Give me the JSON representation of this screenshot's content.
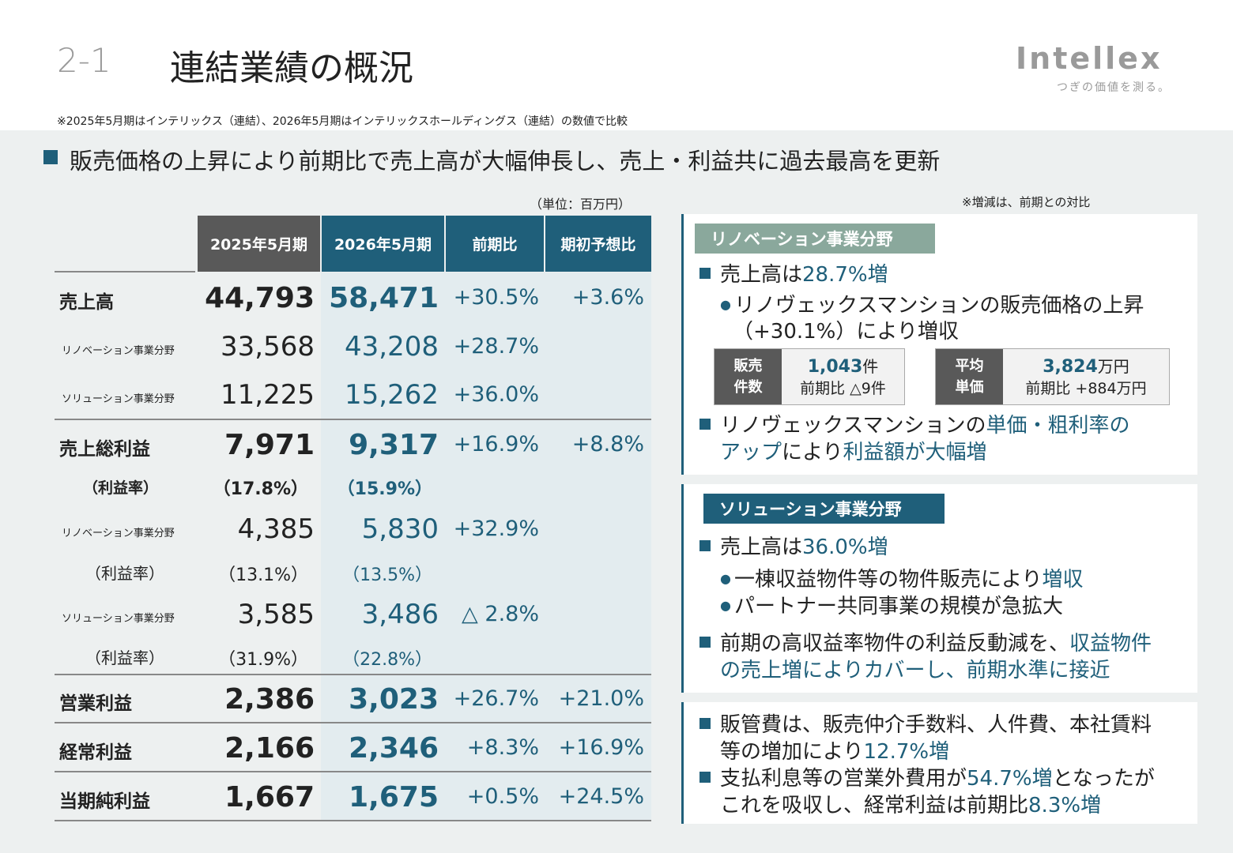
{
  "header": {
    "section_number": "2-1",
    "title": "連結業績の概況",
    "logo_text": "Intellex",
    "logo_tagline": "つぎの価値を測る。",
    "note": "※2025年5月期はインテリックス（連結）、2026年5月期はインテリックスホールディングス（連結）の数値で比較"
  },
  "headline": "販売価格の上昇により前期比で売上高が大幅伸長し、売上・利益共に過去最高を更新",
  "unit": "（単位：百万円）",
  "change_note": "※増減は、前期との対比",
  "table": {
    "columns": [
      "2025年5月期",
      "2026年5月期",
      "前期比",
      "期初予想比"
    ],
    "rows": [
      {
        "label": "売上高",
        "prev": "44,793",
        "cur": "58,471",
        "yoy": "+30.5%",
        "plan": "+3.6%"
      },
      {
        "label": "リノベーション事業分野",
        "prev": "33,568",
        "cur": "43,208",
        "yoy": "+28.7%",
        "plan": ""
      },
      {
        "label": "ソリューション事業分野",
        "prev": "11,225",
        "cur": "15,262",
        "yoy": "+36.0%",
        "plan": ""
      },
      {
        "label": "売上総利益",
        "prev": "7,971",
        "cur": "9,317",
        "yoy": "+16.9%",
        "plan": "+8.8%"
      },
      {
        "label": "（利益率）",
        "prev": "（17.8%）",
        "cur": "（15.9%）",
        "yoy": "",
        "plan": ""
      },
      {
        "label": "リノベーション事業分野",
        "prev": "4,385",
        "cur": "5,830",
        "yoy": "+32.9%",
        "plan": ""
      },
      {
        "label": "（利益率）",
        "prev": "（13.1%）",
        "cur": "（13.5%）",
        "yoy": "",
        "plan": ""
      },
      {
        "label": "ソリューション事業分野",
        "prev": "3,585",
        "cur": "3,486",
        "yoy": "△ 2.8%",
        "plan": ""
      },
      {
        "label": "（利益率）",
        "prev": "（31.9%）",
        "cur": "（22.8%）",
        "yoy": "",
        "plan": ""
      },
      {
        "label": "営業利益",
        "prev": "2,386",
        "cur": "3,023",
        "yoy": "+26.7%",
        "plan": "+21.0%"
      },
      {
        "label": "経常利益",
        "prev": "2,166",
        "cur": "2,346",
        "yoy": "+8.3%",
        "plan": "+16.9%"
      },
      {
        "label": "当期純利益",
        "prev": "1,667",
        "cur": "1,675",
        "yoy": "+0.5%",
        "plan": "+24.5%"
      }
    ]
  },
  "renovation": {
    "tag": "リノベーション事業分野",
    "b1_pre": "売上高は",
    "b1_hl": "28.7%増",
    "sub1_line1": "リノヴェックスマンションの販売価格の上昇",
    "sub1_line2": "（+30.1%）により増収",
    "stat1_key1": "販売",
    "stat1_key2": "件数",
    "stat1_num": "1,043",
    "stat1_unit": "件",
    "stat1_sub": "前期比 △9件",
    "stat2_key1": "平均",
    "stat2_key2": "単価",
    "stat2_num": "3,824",
    "stat2_unit": "万円",
    "stat2_sub": "前期比 +884万円",
    "b2_pre": "リノヴェックスマンションの",
    "b2_hl1": "単価・粗利率の",
    "b2_hl2": "アップ",
    "b2_mid": "により",
    "b2_hl3": "利益額が大幅増"
  },
  "solution": {
    "tag": "ソリューション事業分野",
    "b1_pre": "売上高は",
    "b1_hl": "36.0%増",
    "sub1_pre": "一棟収益物件等の物件販売により",
    "sub1_hl": "増収",
    "sub2": "パートナー共同事業の規模が急拡大",
    "b2_pre": "前期の高収益率物件の利益反動減を、",
    "b2_hl1": "収益物件",
    "b2_hl2": "の売上増によりカバーし、前期水準に接近"
  },
  "other": {
    "b1_line1": "販管費は、販売仲介手数料、人件費、本社賃料",
    "b1_pre": "等の増加により",
    "b1_hl": "12.7%増",
    "b2_pre": "支払利息等の営業外費用が",
    "b2_hl": "54.7%増",
    "b2_post": "となったが",
    "b2_line2_pre": "これを吸収し、経常利益は前期比",
    "b2_line2_hl": "8.3%増"
  }
}
